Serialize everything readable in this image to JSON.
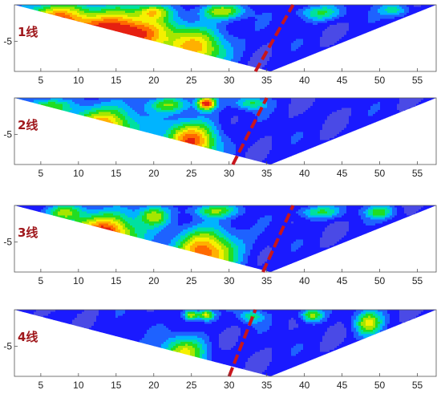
{
  "chart_data": [
    {
      "type": "heatmap",
      "label": "1线",
      "xlim": [
        1.5,
        57.5
      ],
      "xticks": [
        5,
        10,
        15,
        20,
        25,
        30,
        35,
        40,
        45,
        50,
        55
      ],
      "yticks": [
        "-5"
      ],
      "triangle": {
        "left": 1.5,
        "right": 57.5,
        "apex": 35.5
      },
      "fault": {
        "from": [
          33.5,
          1.0
        ],
        "to": [
          38.5,
          0.0
        ]
      },
      "blobs": [
        {
          "x": 15,
          "d": 0.45,
          "rx": 7,
          "ry": 0.35,
          "amp": 1.0
        },
        {
          "x": 26,
          "d": 0.65,
          "rx": 4,
          "ry": 0.3,
          "amp": 0.55
        },
        {
          "x": 7,
          "d": 0.2,
          "rx": 4,
          "ry": 0.25,
          "amp": 0.6
        },
        {
          "x": 29,
          "d": 0.1,
          "rx": 3,
          "ry": 0.12,
          "amp": 0.45
        },
        {
          "x": 42,
          "d": 0.12,
          "rx": 3,
          "ry": 0.12,
          "amp": 0.35
        },
        {
          "x": 20,
          "d": 0.1,
          "rx": 2,
          "ry": 0.1,
          "amp": 0.4
        },
        {
          "x": 52,
          "d": 0.08,
          "rx": 2,
          "ry": 0.1,
          "amp": 0.3
        }
      ]
    },
    {
      "type": "heatmap",
      "label": "2线",
      "xlim": [
        1.5,
        57.5
      ],
      "xticks": [
        5,
        10,
        15,
        20,
        25,
        30,
        35,
        40,
        45,
        50,
        55
      ],
      "yticks": [
        "-5"
      ],
      "triangle": {
        "left": 1.5,
        "right": 57.5,
        "apex": 35.5
      },
      "fault": {
        "from": [
          30.5,
          1.0
        ],
        "to": [
          35.0,
          0.0
        ]
      },
      "blobs": [
        {
          "x": 13,
          "d": 0.45,
          "rx": 4.5,
          "ry": 0.3,
          "amp": 0.75
        },
        {
          "x": 25,
          "d": 0.65,
          "rx": 3.5,
          "ry": 0.3,
          "amp": 0.75
        },
        {
          "x": 27,
          "d": 0.08,
          "rx": 1.2,
          "ry": 0.1,
          "amp": 0.9
        },
        {
          "x": 22,
          "d": 0.1,
          "rx": 3,
          "ry": 0.12,
          "amp": 0.4
        },
        {
          "x": 6,
          "d": 0.12,
          "rx": 3,
          "ry": 0.12,
          "amp": 0.4
        },
        {
          "x": 33,
          "d": 0.08,
          "rx": 2,
          "ry": 0.1,
          "amp": 0.35
        }
      ]
    },
    {
      "type": "heatmap",
      "label": "3线",
      "xlim": [
        1.5,
        57.5
      ],
      "xticks": [
        5,
        10,
        15,
        20,
        25,
        30,
        35,
        40,
        45,
        50,
        55
      ],
      "yticks": [
        "-5"
      ],
      "triangle": {
        "left": 1.5,
        "right": 57.5,
        "apex": 35.5
      },
      "fault": {
        "from": [
          34.5,
          1.0
        ],
        "to": [
          38.5,
          0.0
        ]
      },
      "blobs": [
        {
          "x": 13,
          "d": 0.45,
          "rx": 4.5,
          "ry": 0.3,
          "amp": 0.95
        },
        {
          "x": 27,
          "d": 0.7,
          "rx": 4,
          "ry": 0.35,
          "amp": 0.75
        },
        {
          "x": 20,
          "d": 0.15,
          "rx": 2,
          "ry": 0.15,
          "amp": 0.45
        },
        {
          "x": 8,
          "d": 0.1,
          "rx": 2.5,
          "ry": 0.12,
          "amp": 0.4
        },
        {
          "x": 28,
          "d": 0.08,
          "rx": 3,
          "ry": 0.1,
          "amp": 0.4
        },
        {
          "x": 42,
          "d": 0.1,
          "rx": 3,
          "ry": 0.1,
          "amp": 0.35
        },
        {
          "x": 50,
          "d": 0.1,
          "rx": 2,
          "ry": 0.1,
          "amp": 0.35
        }
      ]
    },
    {
      "type": "heatmap",
      "label": "4线",
      "xlim": [
        1.5,
        57.5
      ],
      "xticks": [
        5,
        10,
        15,
        20,
        25,
        30,
        35,
        40,
        45,
        50,
        55
      ],
      "yticks": [
        "-5"
      ],
      "triangle": {
        "left": 1.5,
        "right": 57.5,
        "apex": 35.5
      },
      "fault": {
        "from": [
          30.0,
          1.0
        ],
        "to": [
          33.5,
          0.0
        ]
      },
      "blobs": [
        {
          "x": 24,
          "d": 0.65,
          "rx": 3,
          "ry": 0.25,
          "amp": 0.5
        },
        {
          "x": 14,
          "d": 0.7,
          "rx": 3,
          "ry": 0.25,
          "amp": 0.35
        },
        {
          "x": 48.5,
          "d": 0.2,
          "rx": 1.8,
          "ry": 0.18,
          "amp": 0.5
        },
        {
          "x": 41,
          "d": 0.08,
          "rx": 1.5,
          "ry": 0.1,
          "amp": 0.5
        },
        {
          "x": 25,
          "d": 0.08,
          "rx": 1,
          "ry": 0.08,
          "amp": 0.55
        },
        {
          "x": 27,
          "d": 0.08,
          "rx": 1,
          "ry": 0.08,
          "amp": 0.55
        },
        {
          "x": 33,
          "d": 0.1,
          "rx": 1.5,
          "ry": 0.1,
          "amp": 0.35
        }
      ]
    }
  ]
}
